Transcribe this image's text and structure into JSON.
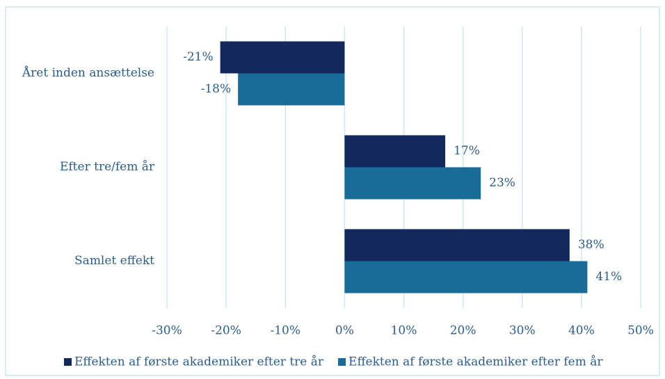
{
  "chart_data": {
    "type": "barh",
    "categories": [
      "Året inden ansættelse",
      "Efter tre/fem år",
      "Samlet effekt"
    ],
    "series": [
      {
        "name": "Effekten af første akademiker efter tre år",
        "color": "#13285c",
        "values": [
          -21,
          17,
          38
        ],
        "value_labels": [
          "-21%",
          "17%",
          "38%"
        ]
      },
      {
        "name": "Effekten af første akademiker efter fem år",
        "color": "#1a6c98",
        "values": [
          -18,
          23,
          41
        ],
        "value_labels": [
          "-18%",
          "23%",
          "41%"
        ]
      }
    ],
    "xlim": [
      -30,
      50
    ],
    "xticks": [
      {
        "value": -30,
        "label": "-30%"
      },
      {
        "value": -20,
        "label": "-20%"
      },
      {
        "value": -10,
        "label": "-10%"
      },
      {
        "value": 0,
        "label": "0%"
      },
      {
        "value": 10,
        "label": "10%"
      },
      {
        "value": 20,
        "label": "20%"
      },
      {
        "value": 30,
        "label": "30%"
      },
      {
        "value": 40,
        "label": "40%"
      },
      {
        "value": 50,
        "label": "50%"
      }
    ],
    "grid": true,
    "legend": "bottom"
  }
}
